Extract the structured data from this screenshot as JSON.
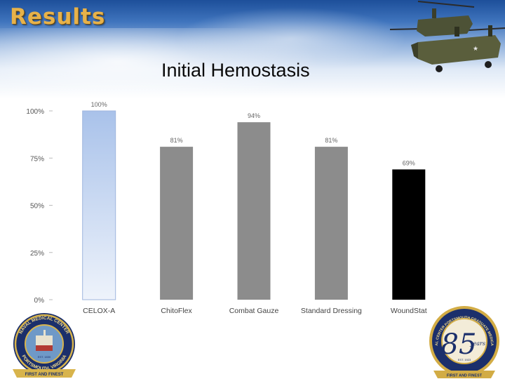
{
  "slide": {
    "heading": "Results"
  },
  "chart_data": {
    "type": "bar",
    "title": "Initial Hemostasis",
    "categories": [
      "CELOX-A",
      "ChitoFlex",
      "Combat Gauze",
      "Standard Dressing",
      "WoundStat"
    ],
    "values": [
      100,
      81,
      94,
      81,
      69
    ],
    "value_labels": [
      "100%",
      "81%",
      "94%",
      "81%",
      "69%"
    ],
    "ylim": [
      0,
      100
    ],
    "yticks": [
      0,
      25,
      50,
      75,
      100
    ],
    "ytick_labels": [
      "0%",
      "25%",
      "50%",
      "75%",
      "100%"
    ],
    "grid": false,
    "legend": "none",
    "colors": [
      "#bcd0ee",
      "#8c8c8c",
      "#8c8c8c",
      "#8c8c8c",
      "#000000"
    ]
  },
  "logos": {
    "left": {
      "ring_top": "NAVAL MEDICAL CENTER",
      "ring_bottom": "PORTSMOUTH, VIRGINIA",
      "est": "EST. 1830",
      "ribbon": "FIRST AND FINEST"
    },
    "right": {
      "ring_text": "NAVAL MEDICAL CENTER PORTSMOUTH GRADUATE MEDICAL EDUCATION",
      "big_number": "85",
      "years": "years",
      "est": "EST. 1923",
      "ribbon": "FIRST AND FINEST"
    }
  }
}
